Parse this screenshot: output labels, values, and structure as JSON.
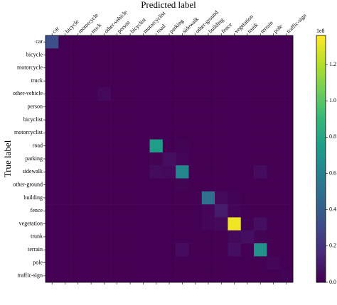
{
  "chart_data": {
    "type": "heatmap",
    "title": "Predicted label",
    "y_label": "True label",
    "categories": [
      "car",
      "bicycle",
      "motorcycle",
      "truck",
      "other-vehicle",
      "person",
      "bicyclist",
      "motorcyclist",
      "road",
      "parking",
      "sidewalk",
      "other-ground",
      "building",
      "fence",
      "vegetation",
      "trunk",
      "terrain",
      "pole",
      "traffic-sign"
    ],
    "values": [
      [
        0.33,
        0,
        0,
        0,
        0,
        0,
        0,
        0,
        0,
        0,
        0,
        0,
        0,
        0,
        0,
        0,
        0,
        0,
        0
      ],
      [
        0,
        0,
        0,
        0,
        0,
        0,
        0,
        0,
        0,
        0,
        0,
        0,
        0,
        0,
        0,
        0,
        0,
        0,
        0
      ],
      [
        0,
        0,
        0,
        0,
        0,
        0,
        0,
        0,
        0,
        0,
        0,
        0,
        0,
        0,
        0,
        0,
        0,
        0,
        0
      ],
      [
        0,
        0,
        0,
        0,
        0,
        0,
        0,
        0,
        0,
        0,
        0,
        0,
        0,
        0,
        0,
        0,
        0,
        0,
        0
      ],
      [
        0,
        0,
        0,
        0,
        0.03,
        0,
        0,
        0,
        0,
        0,
        0,
        0,
        0,
        0,
        0,
        0,
        0,
        0,
        0
      ],
      [
        0,
        0,
        0,
        0,
        0,
        0,
        0,
        0,
        0,
        0,
        0,
        0,
        0,
        0,
        0,
        0,
        0,
        0,
        0
      ],
      [
        0,
        0,
        0,
        0,
        0,
        0,
        0,
        0,
        0,
        0,
        0,
        0,
        0,
        0,
        0,
        0,
        0,
        0,
        0
      ],
      [
        0,
        0,
        0,
        0,
        0,
        0,
        0,
        0,
        0,
        0,
        0,
        0,
        0,
        0,
        0,
        0,
        0,
        0,
        0
      ],
      [
        0,
        0,
        0,
        0,
        0,
        0,
        0,
        0,
        0.75,
        0,
        0.01,
        0,
        0,
        0,
        0,
        0,
        0,
        0,
        0
      ],
      [
        0,
        0,
        0,
        0,
        0,
        0,
        0,
        0,
        0.01,
        0.05,
        0.02,
        0,
        0,
        0,
        0,
        0,
        0,
        0,
        0
      ],
      [
        0,
        0,
        0,
        0,
        0,
        0,
        0,
        0,
        0.04,
        0.03,
        0.62,
        0,
        0,
        0,
        0,
        0,
        0.04,
        0,
        0
      ],
      [
        0,
        0,
        0,
        0,
        0,
        0,
        0,
        0,
        0,
        0,
        0.01,
        0,
        0,
        0,
        0,
        0,
        0,
        0,
        0
      ],
      [
        0,
        0,
        0,
        0,
        0,
        0,
        0,
        0,
        0,
        0,
        0,
        0,
        0.5,
        0.03,
        0.01,
        0,
        0,
        0,
        0
      ],
      [
        0,
        0,
        0,
        0,
        0,
        0,
        0,
        0,
        0,
        0,
        0,
        0,
        0.02,
        0.1,
        0.02,
        0,
        0,
        0,
        0
      ],
      [
        0,
        0,
        0,
        0,
        0,
        0,
        0,
        0,
        0,
        0,
        0,
        0,
        0.02,
        0.03,
        1.33,
        0.01,
        0.05,
        0,
        0
      ],
      [
        0,
        0,
        0,
        0,
        0,
        0,
        0,
        0,
        0,
        0,
        0,
        0,
        0,
        0,
        0.03,
        0.05,
        0.01,
        0,
        0
      ],
      [
        0,
        0,
        0,
        0,
        0,
        0,
        0,
        0,
        0,
        0,
        0.04,
        0,
        0,
        0,
        0.05,
        0,
        0.68,
        0,
        0
      ],
      [
        0,
        0,
        0,
        0,
        0,
        0,
        0,
        0,
        0,
        0,
        0,
        0,
        0,
        0,
        0,
        0,
        0,
        0.02,
        0
      ],
      [
        0,
        0,
        0,
        0,
        0,
        0,
        0,
        0,
        0,
        0,
        0,
        0,
        0,
        0,
        0,
        0,
        0,
        0,
        0.01
      ]
    ],
    "clim": [
      0,
      1.36
    ],
    "colorbar_ticks": [
      {
        "value": 0,
        "label": "0.0"
      },
      0.2,
      0.4,
      0.6,
      0.8,
      {
        "value": 1,
        "label": "1.0"
      },
      1.2
    ],
    "colorbar_offset": "1e8",
    "colormap": "viridis"
  }
}
